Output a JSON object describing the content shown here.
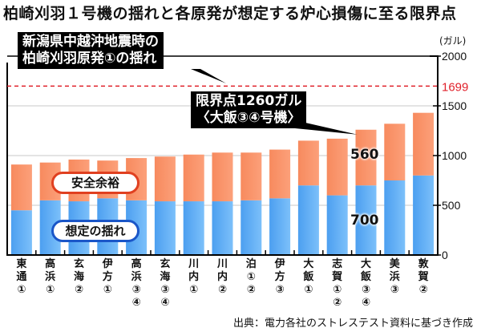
{
  "chart_data": {
    "type": "bar",
    "stacked": true,
    "title": "柏崎刈羽１号機の揺れと各原発が想定する炉心損傷に至る限界点",
    "ylabel": "(ガル)",
    "ylim": [
      0,
      2000
    ],
    "yticks": [
      "0",
      "500",
      "1000",
      "1500",
      "2000"
    ],
    "grid": true,
    "categories": [
      {
        "lines": [
          "東",
          "通",
          "①"
        ]
      },
      {
        "lines": [
          "高",
          "浜",
          "①"
        ]
      },
      {
        "lines": [
          "玄",
          "海",
          "②"
        ]
      },
      {
        "lines": [
          "伊",
          "方",
          "①"
        ]
      },
      {
        "lines": [
          "高",
          "浜",
          "③",
          "④"
        ]
      },
      {
        "lines": [
          "玄",
          "海",
          "③",
          "④"
        ]
      },
      {
        "lines": [
          "川",
          "内",
          "①"
        ]
      },
      {
        "lines": [
          "川",
          "内",
          "②"
        ]
      },
      {
        "lines": [
          "泊",
          "①",
          "②"
        ]
      },
      {
        "lines": [
          "伊",
          "方",
          "③"
        ]
      },
      {
        "lines": [
          "大",
          "飯",
          "①"
        ]
      },
      {
        "lines": [
          "志",
          "賀",
          "①",
          "②"
        ]
      },
      {
        "lines": [
          "大",
          "飯",
          "③",
          "④"
        ]
      },
      {
        "lines": [
          "美",
          "浜",
          "③"
        ]
      },
      {
        "lines": [
          "敦",
          "賀",
          "②"
        ]
      }
    ],
    "series": [
      {
        "name": "想定の揺れ",
        "color": "#5aaaf0",
        "values": [
          450,
          550,
          540,
          570,
          550,
          540,
          540,
          540,
          550,
          570,
          700,
          600,
          700,
          750,
          800
        ]
      },
      {
        "name": "安全余裕",
        "color": "#fa8a60",
        "values": [
          460,
          380,
          420,
          380,
          425,
          450,
          470,
          490,
          480,
          490,
          450,
          570,
          560,
          570,
          630
        ]
      }
    ],
    "totals": [
      910,
      930,
      960,
      950,
      975,
      990,
      1010,
      1030,
      1030,
      1060,
      1150,
      1170,
      1260,
      1320,
      1430
    ],
    "reference_line": {
      "value": 1699,
      "label": "1699",
      "color": "#e0202a",
      "style": "dashed"
    },
    "annotations": [
      {
        "text_lines": [
          "新潟県中越沖地震時の",
          "柏崎刈羽原発①の揺れ"
        ],
        "target": "reference_line"
      },
      {
        "text_lines": [
          "限界点1260ガル",
          "〈大飯③④号機〉"
        ],
        "target": "大飯③④"
      }
    ],
    "legend": [
      "安全余裕",
      "想定の揺れ"
    ],
    "data_labels": {
      "upper": "560",
      "lower": "700"
    },
    "source": "出典：電力各社のストレステスト資料に基づき作成"
  }
}
